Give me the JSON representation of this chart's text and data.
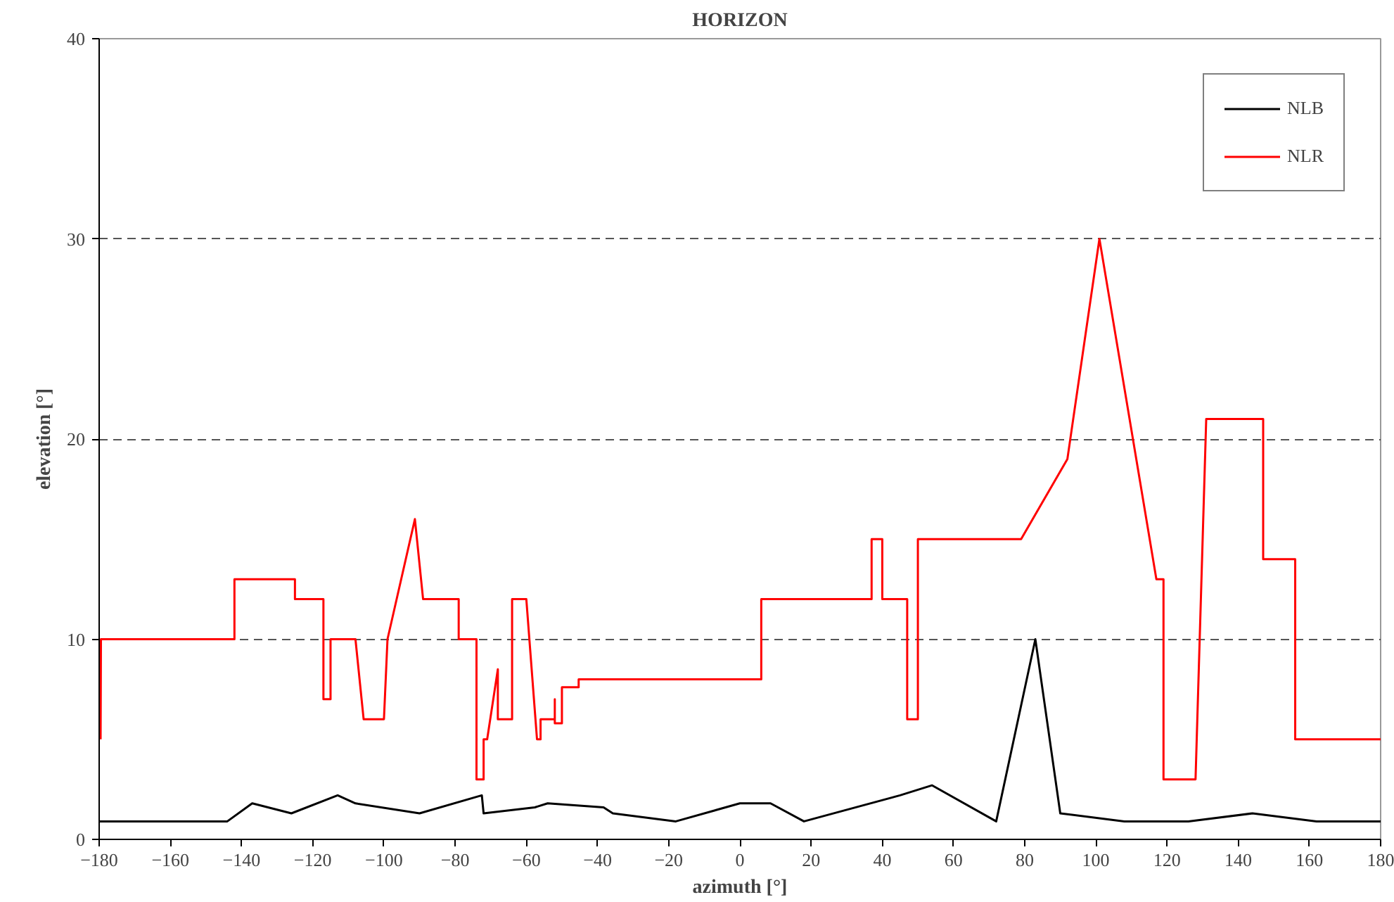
{
  "chart_data": {
    "type": "line",
    "title": "HORIZON",
    "xlabel": "azimuth [°]",
    "ylabel": "elevation [°]",
    "xlim": [
      -180,
      180
    ],
    "xticks": [
      -180,
      -160,
      -140,
      -120,
      -100,
      -80,
      -60,
      -40,
      -20,
      0,
      20,
      40,
      60,
      80,
      100,
      120,
      140,
      160,
      180
    ],
    "ylim": [
      0,
      40
    ],
    "yticks": [
      0,
      10,
      20,
      30,
      40
    ],
    "grid": "y",
    "legend": "top right",
    "series": [
      {
        "name": "NLB",
        "color": "#000000",
        "x": [
          -180,
          -144,
          -137,
          -126,
          -113,
          -108,
          -90,
          -72.5,
          -72,
          -57.6,
          -54,
          -38.3,
          -35.7,
          -18,
          0,
          8.6,
          18,
          45,
          54,
          72,
          83,
          90,
          108,
          126,
          144,
          162,
          180
        ],
        "values": [
          0.9,
          0.9,
          1.8,
          1.3,
          2.2,
          1.8,
          1.3,
          2.2,
          1.3,
          1.6,
          1.8,
          1.6,
          1.3,
          0.9,
          1.8,
          1.8,
          0.9,
          2.2,
          2.7,
          0.9,
          10,
          1.3,
          0.9,
          0.9,
          1.3,
          0.9,
          0.9
        ]
      },
      {
        "name": "NLR",
        "color": "#ff0000",
        "x": [
          -179.6,
          -179.5,
          -142,
          -142,
          -125,
          -125,
          -117,
          -117,
          -115,
          -115,
          -108,
          -105.7,
          -100,
          -99,
          -91.3,
          -89,
          -79,
          -79,
          -74,
          -74,
          -72,
          -72,
          -71,
          -68,
          -68,
          -64,
          -64,
          -60,
          -57,
          -56,
          -56,
          -52,
          -52,
          -52,
          -50,
          -50,
          -45.3,
          -45.3,
          6,
          6,
          37,
          37,
          40,
          40,
          47,
          47,
          50,
          50,
          79,
          92,
          101,
          117,
          119,
          119,
          128,
          131,
          147,
          147,
          156,
          156,
          180
        ],
        "values": [
          5,
          10,
          10,
          13,
          13,
          12,
          12,
          7,
          7,
          10,
          10,
          6,
          6,
          10,
          16,
          12,
          12,
          10,
          10,
          3,
          3,
          5,
          5,
          8.5,
          6,
          6,
          12,
          12,
          5,
          5,
          6,
          6,
          7,
          5.8,
          5.8,
          7.6,
          7.6,
          8,
          8,
          12,
          12,
          15,
          15,
          12,
          12,
          6,
          6,
          15,
          15,
          19,
          30,
          13,
          13,
          3,
          3,
          21,
          21,
          14,
          14,
          5,
          5
        ]
      }
    ]
  }
}
